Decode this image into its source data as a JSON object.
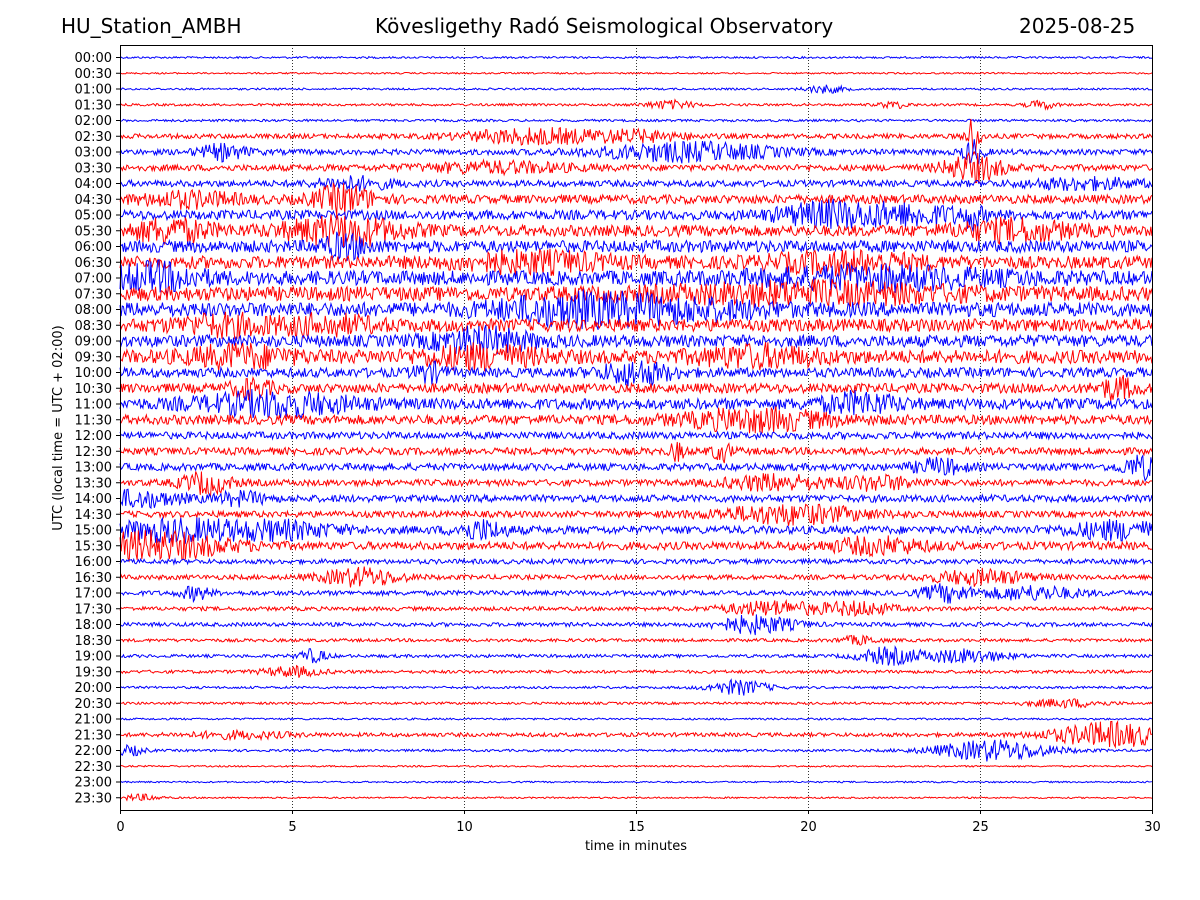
{
  "header": {
    "station": "HU_Station_AMBH",
    "title": "Kövesligethy Radó Seismological Observatory",
    "date": "2025-08-25"
  },
  "chart_data": {
    "type": "line",
    "title": "Kövesligethy Radó Seismological Observatory",
    "xlabel": "time in minutes",
    "ylabel": "UTC (local time = UTC + 02:00)",
    "xlim": [
      0,
      30
    ],
    "x_ticks": [
      0,
      5,
      10,
      15,
      20,
      25,
      30
    ],
    "grid": "vertical dotted",
    "line_colors": [
      "#0000ff",
      "#ff0000"
    ],
    "rows": [
      {
        "label": "00:00",
        "color": "#0000ff",
        "level": 0.12,
        "bursts": []
      },
      {
        "label": "00:30",
        "color": "#ff0000",
        "level": 0.1,
        "bursts": []
      },
      {
        "label": "01:00",
        "color": "#0000ff",
        "level": 0.12,
        "bursts": [
          {
            "t": 20.5,
            "w": 0.4,
            "a": 0.5
          }
        ]
      },
      {
        "label": "01:30",
        "color": "#ff0000",
        "level": 0.15,
        "bursts": [
          {
            "t": 16.0,
            "w": 0.5,
            "a": 0.5
          },
          {
            "t": 22.5,
            "w": 0.3,
            "a": 0.4
          },
          {
            "t": 26.8,
            "w": 0.3,
            "a": 0.5
          }
        ]
      },
      {
        "label": "02:00",
        "color": "#0000ff",
        "level": 0.15,
        "bursts": []
      },
      {
        "label": "02:30",
        "color": "#ff0000",
        "level": 0.3,
        "bursts": [
          {
            "t": 12.0,
            "w": 1.4,
            "a": 0.9
          },
          {
            "t": 15.0,
            "w": 1.0,
            "a": 0.6
          },
          {
            "t": 24.8,
            "w": 0.15,
            "a": 2.5
          }
        ]
      },
      {
        "label": "03:00",
        "color": "#0000ff",
        "level": 0.35,
        "bursts": [
          {
            "t": 3.0,
            "w": 0.5,
            "a": 0.9
          },
          {
            "t": 16.5,
            "w": 1.8,
            "a": 1.1
          },
          {
            "t": 24.8,
            "w": 0.2,
            "a": 1.5
          }
        ]
      },
      {
        "label": "03:30",
        "color": "#ff0000",
        "level": 0.4,
        "bursts": [
          {
            "t": 11.0,
            "w": 1.5,
            "a": 0.6
          },
          {
            "t": 24.8,
            "w": 0.6,
            "a": 1.6
          }
        ]
      },
      {
        "label": "04:00",
        "color": "#0000ff",
        "level": 0.4,
        "bursts": [
          {
            "t": 6.8,
            "w": 0.8,
            "a": 0.7
          },
          {
            "t": 28.0,
            "w": 1.2,
            "a": 0.6
          }
        ]
      },
      {
        "label": "04:30",
        "color": "#ff0000",
        "level": 0.55,
        "bursts": [
          {
            "t": 2.0,
            "w": 1.0,
            "a": 0.8
          },
          {
            "t": 6.5,
            "w": 0.6,
            "a": 1.6
          }
        ]
      },
      {
        "label": "05:00",
        "color": "#0000ff",
        "level": 0.6,
        "bursts": [
          {
            "t": 20.5,
            "w": 1.0,
            "a": 1.3
          },
          {
            "t": 23.0,
            "w": 1.2,
            "a": 1.1
          },
          {
            "t": 24.8,
            "w": 0.15,
            "a": 1.4
          }
        ]
      },
      {
        "label": "05:30",
        "color": "#ff0000",
        "level": 0.7,
        "bursts": [
          {
            "t": 1.5,
            "w": 0.8,
            "a": 1.3
          },
          {
            "t": 6.5,
            "w": 1.2,
            "a": 1.6
          },
          {
            "t": 26.0,
            "w": 1.2,
            "a": 1.1
          }
        ]
      },
      {
        "label": "06:00",
        "color": "#0000ff",
        "level": 0.75,
        "bursts": [
          {
            "t": 6.5,
            "w": 0.5,
            "a": 1.2
          }
        ]
      },
      {
        "label": "06:30",
        "color": "#ff0000",
        "level": 0.8,
        "bursts": [
          {
            "t": 12.0,
            "w": 1.5,
            "a": 1.0
          },
          {
            "t": 21.0,
            "w": 1.5,
            "a": 1.0
          }
        ]
      },
      {
        "label": "07:00",
        "color": "#0000ff",
        "level": 0.9,
        "bursts": [
          {
            "t": 1.0,
            "w": 0.9,
            "a": 1.4
          },
          {
            "t": 22.0,
            "w": 2.5,
            "a": 1.0
          }
        ]
      },
      {
        "label": "07:30",
        "color": "#ff0000",
        "level": 0.9,
        "bursts": [
          {
            "t": 20.0,
            "w": 3.0,
            "a": 1.0
          }
        ]
      },
      {
        "label": "08:00",
        "color": "#0000ff",
        "level": 0.9,
        "bursts": [
          {
            "t": 13.0,
            "w": 1.5,
            "a": 1.3
          },
          {
            "t": 16.0,
            "w": 2.0,
            "a": 1.0
          }
        ]
      },
      {
        "label": "08:30",
        "color": "#ff0000",
        "level": 0.8,
        "bursts": [
          {
            "t": 3.0,
            "w": 1.0,
            "a": 1.0
          },
          {
            "t": 6.0,
            "w": 1.0,
            "a": 0.9
          }
        ]
      },
      {
        "label": "09:00",
        "color": "#0000ff",
        "level": 0.75,
        "bursts": [
          {
            "t": 10.5,
            "w": 1.0,
            "a": 1.3
          }
        ]
      },
      {
        "label": "09:30",
        "color": "#ff0000",
        "level": 0.85,
        "bursts": [
          {
            "t": 3.5,
            "w": 1.0,
            "a": 1.1
          },
          {
            "t": 10.5,
            "w": 1.2,
            "a": 1.1
          },
          {
            "t": 18.5,
            "w": 1.2,
            "a": 1.0
          }
        ]
      },
      {
        "label": "10:00",
        "color": "#0000ff",
        "level": 0.6,
        "bursts": [
          {
            "t": 15.0,
            "w": 0.7,
            "a": 1.3
          },
          {
            "t": 9.0,
            "w": 0.3,
            "a": 1.0
          }
        ]
      },
      {
        "label": "10:30",
        "color": "#ff0000",
        "level": 0.6,
        "bursts": [
          {
            "t": 3.8,
            "w": 0.4,
            "a": 1.1
          },
          {
            "t": 29.0,
            "w": 0.4,
            "a": 1.2
          }
        ]
      },
      {
        "label": "11:00",
        "color": "#0000ff",
        "level": 0.7,
        "bursts": [
          {
            "t": 4.5,
            "w": 1.5,
            "a": 1.3
          },
          {
            "t": 21.5,
            "w": 0.8,
            "a": 1.1
          }
        ]
      },
      {
        "label": "11:30",
        "color": "#ff0000",
        "level": 0.6,
        "bursts": [
          {
            "t": 18.5,
            "w": 1.5,
            "a": 1.2
          }
        ]
      },
      {
        "label": "12:00",
        "color": "#0000ff",
        "level": 0.45,
        "bursts": []
      },
      {
        "label": "12:30",
        "color": "#ff0000",
        "level": 0.45,
        "bursts": [
          {
            "t": 16.2,
            "w": 0.15,
            "a": 1.0
          },
          {
            "t": 17.5,
            "w": 0.2,
            "a": 1.1
          }
        ]
      },
      {
        "label": "13:00",
        "color": "#0000ff",
        "level": 0.45,
        "bursts": [
          {
            "t": 23.8,
            "w": 0.5,
            "a": 0.9
          },
          {
            "t": 29.7,
            "w": 0.4,
            "a": 1.3
          }
        ]
      },
      {
        "label": "13:30",
        "color": "#ff0000",
        "level": 0.4,
        "bursts": [
          {
            "t": 2.5,
            "w": 0.5,
            "a": 1.3
          },
          {
            "t": 19.0,
            "w": 1.0,
            "a": 0.9
          },
          {
            "t": 22.0,
            "w": 0.8,
            "a": 0.8
          }
        ]
      },
      {
        "label": "14:00",
        "color": "#0000ff",
        "level": 0.45,
        "bursts": [
          {
            "t": 0.6,
            "w": 0.8,
            "a": 0.9
          },
          {
            "t": 3.5,
            "w": 0.5,
            "a": 0.7
          }
        ]
      },
      {
        "label": "14:30",
        "color": "#ff0000",
        "level": 0.4,
        "bursts": [
          {
            "t": 19.5,
            "w": 1.5,
            "a": 1.1
          }
        ]
      },
      {
        "label": "15:00",
        "color": "#0000ff",
        "level": 0.5,
        "bursts": [
          {
            "t": 1.5,
            "w": 1.2,
            "a": 1.2
          },
          {
            "t": 4.5,
            "w": 1.2,
            "a": 1.0
          },
          {
            "t": 10.5,
            "w": 0.5,
            "a": 1.1
          },
          {
            "t": 29.0,
            "w": 1.0,
            "a": 1.0
          }
        ]
      },
      {
        "label": "15:30",
        "color": "#ff0000",
        "level": 0.5,
        "bursts": [
          {
            "t": 1.0,
            "w": 1.5,
            "a": 1.6
          },
          {
            "t": 22.0,
            "w": 1.0,
            "a": 0.9
          }
        ]
      },
      {
        "label": "16:00",
        "color": "#0000ff",
        "level": 0.3,
        "bursts": []
      },
      {
        "label": "16:30",
        "color": "#ff0000",
        "level": 0.3,
        "bursts": [
          {
            "t": 7.0,
            "w": 0.8,
            "a": 1.1
          },
          {
            "t": 25.0,
            "w": 1.0,
            "a": 0.9
          }
        ]
      },
      {
        "label": "17:00",
        "color": "#0000ff",
        "level": 0.3,
        "bursts": [
          {
            "t": 2.2,
            "w": 0.3,
            "a": 0.8
          },
          {
            "t": 24.0,
            "w": 0.5,
            "a": 1.0
          },
          {
            "t": 26.5,
            "w": 1.0,
            "a": 0.8
          }
        ]
      },
      {
        "label": "17:30",
        "color": "#ff0000",
        "level": 0.25,
        "bursts": [
          {
            "t": 19.0,
            "w": 1.0,
            "a": 0.9
          },
          {
            "t": 21.5,
            "w": 0.7,
            "a": 0.8
          }
        ]
      },
      {
        "label": "18:00",
        "color": "#0000ff",
        "level": 0.25,
        "bursts": [
          {
            "t": 18.5,
            "w": 0.8,
            "a": 1.1
          }
        ]
      },
      {
        "label": "18:30",
        "color": "#ff0000",
        "level": 0.2,
        "bursts": [
          {
            "t": 21.5,
            "w": 0.4,
            "a": 0.5
          }
        ]
      },
      {
        "label": "19:00",
        "color": "#0000ff",
        "level": 0.2,
        "bursts": [
          {
            "t": 5.6,
            "w": 0.3,
            "a": 0.8
          },
          {
            "t": 22.3,
            "w": 0.6,
            "a": 1.0
          },
          {
            "t": 24.5,
            "w": 0.9,
            "a": 0.8
          }
        ]
      },
      {
        "label": "19:30",
        "color": "#ff0000",
        "level": 0.2,
        "bursts": [
          {
            "t": 5.0,
            "w": 0.6,
            "a": 0.6
          }
        ]
      },
      {
        "label": "20:00",
        "color": "#0000ff",
        "level": 0.15,
        "bursts": [
          {
            "t": 18.0,
            "w": 0.6,
            "a": 0.9
          }
        ]
      },
      {
        "label": "20:30",
        "color": "#ff0000",
        "level": 0.15,
        "bursts": [
          {
            "t": 27.5,
            "w": 0.8,
            "a": 0.5
          }
        ]
      },
      {
        "label": "21:00",
        "color": "#0000ff",
        "level": 0.12,
        "bursts": []
      },
      {
        "label": "21:30",
        "color": "#ff0000",
        "level": 0.25,
        "bursts": [
          {
            "t": 28.8,
            "w": 1.2,
            "a": 1.5
          },
          {
            "t": 3.5,
            "w": 1.0,
            "a": 0.4
          }
        ]
      },
      {
        "label": "22:00",
        "color": "#0000ff",
        "level": 0.15,
        "bursts": [
          {
            "t": 25.4,
            "w": 1.2,
            "a": 1.3
          },
          {
            "t": 0.3,
            "w": 0.3,
            "a": 0.6
          }
        ]
      },
      {
        "label": "22:30",
        "color": "#ff0000",
        "level": 0.1,
        "bursts": []
      },
      {
        "label": "23:00",
        "color": "#0000ff",
        "level": 0.1,
        "bursts": []
      },
      {
        "label": "23:30",
        "color": "#ff0000",
        "level": 0.1,
        "bursts": [
          {
            "t": 0.6,
            "w": 0.4,
            "a": 0.4
          }
        ]
      }
    ]
  }
}
